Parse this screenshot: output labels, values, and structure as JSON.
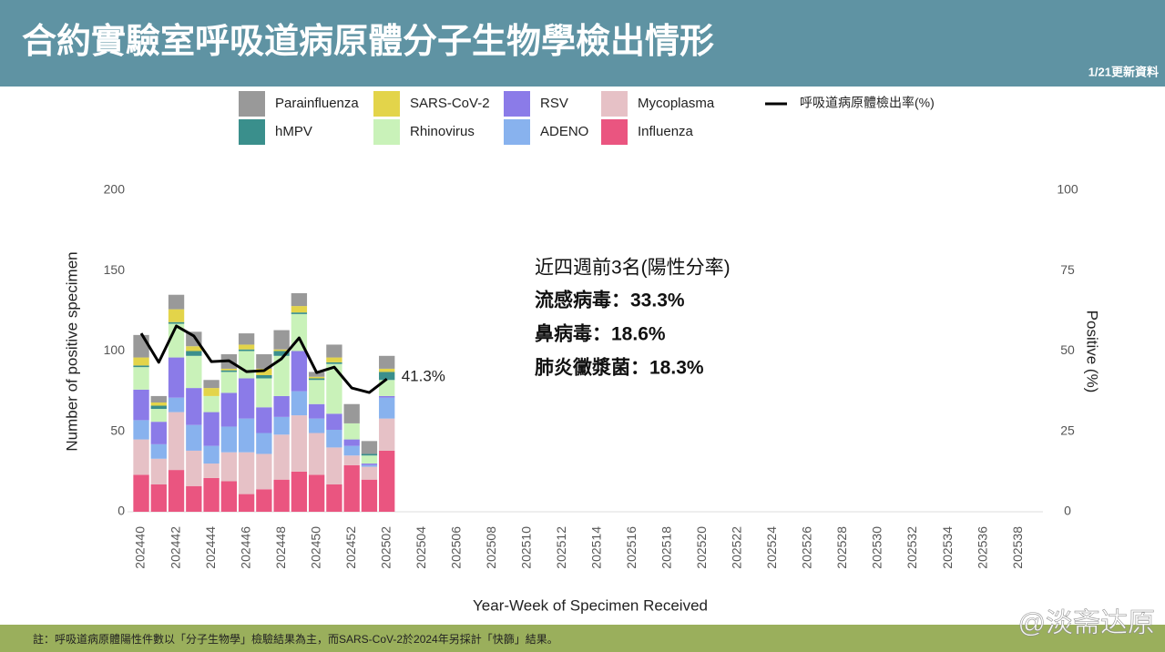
{
  "header": {
    "title": "合約實驗室呼吸道病原體分子生物學檢出情形",
    "update_note": "1/21更新資料"
  },
  "footnote": "註：呼吸道病原體陽性件數以「分子生物學」檢驗結果為主，而SARS-CoV-2於2024年另採計「快篩」結果。",
  "watermark": "@淡斋达原",
  "annotation": {
    "heading": "近四週前3名(陽性分率)",
    "lines": [
      "流感病毒：33.3%",
      "鼻病毒：18.6%",
      "肺炎黴漿菌：18.3%"
    ]
  },
  "chart_data": {
    "type": "bar",
    "stacked": true,
    "xlabel": "Year-Week of Specimen Received",
    "ylabel": "Number of positive specimen",
    "y2label": "Positive (%)",
    "ylim": [
      0,
      200
    ],
    "yticks": [
      0,
      50,
      100,
      150,
      200
    ],
    "y2lim": [
      0,
      100
    ],
    "y2ticks": [
      0,
      25,
      50,
      75,
      100
    ],
    "grid": false,
    "categories": [
      "202440",
      null,
      "202442",
      null,
      "202444",
      null,
      "202446",
      null,
      "202448",
      null,
      "202450",
      null,
      "202452",
      null,
      "202502",
      null,
      "202504",
      null,
      "202506",
      null,
      "202508",
      null,
      "202510",
      null,
      "202512",
      null,
      "202514",
      null,
      "202516",
      null,
      "202518",
      null,
      "202520",
      null,
      "202522",
      null,
      "202524",
      null,
      "202526",
      null,
      "202528",
      null,
      "202530",
      null,
      "202532",
      null,
      "202534",
      null,
      "202536",
      null,
      "202538",
      null
    ],
    "series": [
      {
        "name": "Influenza",
        "color": "#ea5580",
        "values": [
          23,
          17,
          26,
          16,
          21,
          19,
          11,
          14,
          20,
          25,
          23,
          17,
          29,
          20,
          38,
          null,
          null,
          null,
          null,
          null,
          null,
          null,
          null,
          null,
          null,
          null,
          null,
          null,
          null,
          null,
          null,
          null,
          null,
          null,
          null,
          null,
          null,
          null,
          null,
          null,
          null,
          null,
          null,
          null,
          null,
          null,
          null,
          null,
          null,
          null,
          null,
          null
        ]
      },
      {
        "name": "Mycoplasma",
        "color": "#e6c1c6",
        "values": [
          22,
          16,
          36,
          22,
          9,
          18,
          26,
          22,
          28,
          35,
          26,
          23,
          6,
          8,
          20,
          null,
          null,
          null,
          null,
          null,
          null,
          null,
          null,
          null,
          null,
          null,
          null,
          null,
          null,
          null,
          null,
          null,
          null,
          null,
          null,
          null,
          null,
          null,
          null,
          null,
          null,
          null,
          null,
          null,
          null,
          null,
          null,
          null,
          null,
          null,
          null,
          null
        ]
      },
      {
        "name": "ADENO",
        "color": "#88b2ee",
        "values": [
          12,
          9,
          9,
          16,
          11,
          16,
          21,
          13,
          11,
          15,
          9,
          11,
          6,
          1,
          13,
          null,
          null,
          null,
          null,
          null,
          null,
          null,
          null,
          null,
          null,
          null,
          null,
          null,
          null,
          null,
          null,
          null,
          null,
          null,
          null,
          null,
          null,
          null,
          null,
          null,
          null,
          null,
          null,
          null,
          null,
          null,
          null,
          null,
          null,
          null,
          null,
          null
        ]
      },
      {
        "name": "RSV",
        "color": "#8b7be8",
        "values": [
          19,
          14,
          25,
          23,
          21,
          21,
          25,
          16,
          13,
          25,
          9,
          10,
          4,
          1,
          1,
          null,
          null,
          null,
          null,
          null,
          null,
          null,
          null,
          null,
          null,
          null,
          null,
          null,
          null,
          null,
          null,
          null,
          null,
          null,
          null,
          null,
          null,
          null,
          null,
          null,
          null,
          null,
          null,
          null,
          null,
          null,
          null,
          null,
          null,
          null,
          null,
          null
        ]
      },
      {
        "name": "Rhinovirus",
        "color": "#c9f2b9",
        "values": [
          14,
          8,
          21,
          20,
          10,
          13,
          17,
          18,
          25,
          23,
          15,
          31,
          10,
          5,
          10,
          null,
          null,
          null,
          null,
          null,
          null,
          null,
          null,
          null,
          null,
          null,
          null,
          null,
          null,
          null,
          null,
          null,
          null,
          null,
          null,
          null,
          null,
          null,
          null,
          null,
          null,
          null,
          null,
          null,
          null,
          null,
          null,
          null,
          null,
          null,
          null,
          null
        ]
      },
      {
        "name": "hMPV",
        "color": "#3a8f8c",
        "values": [
          1,
          2,
          1,
          3,
          0,
          1,
          1,
          2,
          3,
          1,
          1,
          1,
          0,
          1,
          5,
          null,
          null,
          null,
          null,
          null,
          null,
          null,
          null,
          null,
          null,
          null,
          null,
          null,
          null,
          null,
          null,
          null,
          null,
          null,
          null,
          null,
          null,
          null,
          null,
          null,
          null,
          null,
          null,
          null,
          null,
          null,
          null,
          null,
          null,
          null,
          null,
          null
        ]
      },
      {
        "name": "SARS-CoV-2",
        "color": "#e3d44a",
        "values": [
          5,
          2,
          8,
          3,
          5,
          1,
          3,
          4,
          1,
          4,
          1,
          3,
          0,
          0,
          2,
          null,
          null,
          null,
          null,
          null,
          null,
          null,
          null,
          null,
          null,
          null,
          null,
          null,
          null,
          null,
          null,
          null,
          null,
          null,
          null,
          null,
          null,
          null,
          null,
          null,
          null,
          null,
          null,
          null,
          null,
          null,
          null,
          null,
          null,
          null,
          null,
          null
        ]
      },
      {
        "name": "Parainfluenza",
        "color": "#999999",
        "values": [
          14,
          4,
          9,
          9,
          5,
          9,
          7,
          9,
          12,
          8,
          3,
          8,
          12,
          8,
          8,
          null,
          null,
          null,
          null,
          null,
          null,
          null,
          null,
          null,
          null,
          null,
          null,
          null,
          null,
          null,
          null,
          null,
          null,
          null,
          null,
          null,
          null,
          null,
          null,
          null,
          null,
          null,
          null,
          null,
          null,
          null,
          null,
          null,
          null,
          null,
          null,
          null
        ]
      },
      {
        "name": "呼吸道病原體檢出率(%)",
        "color": "#000000",
        "type": "line",
        "axis": "y2",
        "values": [
          55.5,
          46.5,
          57.8,
          54.7,
          46.7,
          47,
          43.6,
          43.9,
          47.6,
          54.1,
          43.3,
          45,
          38.5,
          37.1,
          41.3,
          null,
          null,
          null,
          null,
          null,
          null,
          null,
          null,
          null,
          null,
          null,
          null,
          null,
          null,
          null,
          null,
          null,
          null,
          null,
          null,
          null,
          null,
          null,
          null,
          null,
          null,
          null,
          null,
          null,
          null,
          null,
          null,
          null,
          null,
          null,
          null,
          null
        ],
        "value_labels": [
          null,
          null,
          null,
          null,
          null,
          null,
          null,
          null,
          null,
          null,
          null,
          null,
          null,
          null,
          "41.3%",
          null,
          null,
          null,
          null,
          null,
          null,
          null,
          null,
          null,
          null,
          null,
          null,
          null,
          null,
          null,
          null,
          null,
          null,
          null,
          null,
          null,
          null,
          null,
          null,
          null,
          null,
          null,
          null,
          null,
          null,
          null,
          null,
          null,
          null,
          null,
          null,
          null
        ]
      }
    ]
  }
}
